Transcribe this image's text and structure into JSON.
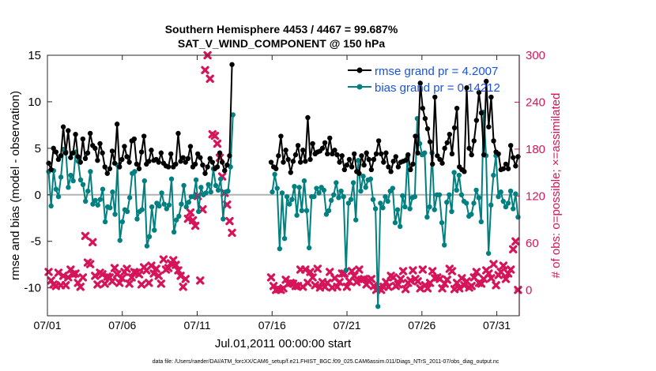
{
  "chart_data": {
    "type": "line",
    "title_line1": "Southern Hemisphere 4453 / 4467 = 99.687%",
    "title_line2": "SAT_V_WIND_COMPONENT @ 150 hPa",
    "xlabel": "Jul.01,2011 00:00:00 start",
    "ylabel": "rmse and bias (model - observation)",
    "ylabel_right": "# of obs: o=possible; ×=assimilated",
    "footnote": "data file: /Users/raeder/DAI/ATM_forcXX/CAM6_setup/f.e21.FHIST_BGC.f09_025.CAM6assim.011/Diags_NTrS_2011-07/obs_diag_output.nc",
    "xlim": [
      0,
      31.5
    ],
    "ylim": [
      -13,
      15
    ],
    "ylim_right": [
      -33,
      300
    ],
    "x_ticks": [
      0,
      5,
      10,
      15,
      20,
      25,
      30
    ],
    "x_tick_labels": [
      "07/01",
      "07/06",
      "07/11",
      "07/16",
      "07/21",
      "07/26",
      "07/31"
    ],
    "y_ticks": [
      -10,
      -5,
      0,
      5,
      10,
      15
    ],
    "y_tick_labels": [
      "-10",
      "-5",
      "0",
      "5",
      "10",
      "15"
    ],
    "y_ticks_right": [
      0,
      60,
      120,
      180,
      240,
      300
    ],
    "y_tick_labels_right": [
      "0",
      "60",
      "120",
      "180",
      "240",
      "300"
    ],
    "zero_line": 0,
    "legend_location": "top-right",
    "colors": {
      "rmse": "#000000",
      "bias": "#008080",
      "obs": "#d6145a",
      "zero": "#b3b3b3",
      "legend_text": "#1a52e0",
      "right_axis": "#d6145a"
    },
    "series": [
      {
        "name": "rmse grand pr = 4.2007",
        "marker": "circle",
        "values": [
          3.4,
          2.7,
          5.0,
          4.6,
          3.8,
          4.2,
          7.3,
          4.5,
          6.9,
          4.0,
          4.5,
          6.5,
          4.1,
          3.5,
          6.0,
          3.9,
          4.5,
          6.6,
          5.3,
          5.0,
          3.7,
          5.5,
          4.5,
          3.0,
          2.3,
          2.8,
          4.7,
          3.4,
          7.6,
          3.0,
          3.8,
          5.2,
          4.1,
          3.5,
          5.8,
          6.0,
          3.3,
          2.8,
          4.6,
          6.3,
          3.3,
          3.6,
          4.8,
          3.7,
          3.8,
          3.5,
          4.5,
          3.4,
          3.1,
          3.0,
          4.4,
          3.0,
          3.3,
          6.6,
          3.6,
          4.0,
          3.5,
          3.9,
          5.2,
          3.0,
          3.3,
          4.4,
          4.0,
          3.2,
          2.3,
          3.0,
          3.9,
          3.5,
          2.8,
          3.0,
          4.5,
          3.5,
          2.6,
          3.2,
          4.2,
          14.0,
          null,
          null,
          null,
          null,
          null,
          null,
          null,
          null,
          null,
          null,
          null,
          null,
          null,
          null,
          null,
          3.5,
          3.0,
          2.8,
          4.2,
          6.3,
          3.5,
          4.8,
          3.8,
          2.4,
          3.6,
          4.3,
          5.3,
          3.5,
          4.8,
          3.6,
          8.3,
          3.8,
          5.5,
          4.4,
          4.6,
          4.7,
          5.0,
          5.6,
          4.4,
          6.1,
          4.4,
          4.8,
          4.3,
          3.5,
          4.2,
          2.7,
          3.2,
          3.8,
          3.0,
          4.4,
          2.5,
          2.3,
          4.2,
          3.2,
          4.5,
          3.8,
          2.7,
          3.8,
          4.4,
          5.8,
          4.4,
          3.5,
          4.5,
          3.0,
          2.5,
          3.6,
          4.1,
          3.0,
          3.5,
          3.6,
          3.7,
          4.3,
          2.7,
          3.3,
          6.3,
          4.5,
          12.0,
          9.3,
          8.2,
          7.1,
          5.7,
          3.3,
          10.5,
          4.2,
          3.8,
          3.4,
          5.0,
          5.6,
          6.5,
          4.4,
          7.2,
          9.3,
          3.0,
          2.7,
          2.5,
          11.5,
          5.0,
          4.3,
          5.8,
          8.0,
          11.0,
          8.8,
          4.3,
          12.2,
          7.3,
          10.5,
          5.8,
          4.6,
          4.4,
          2.7,
          2.8,
          3.3,
          2.8,
          5.3,
          4.0,
          3.1,
          4.1
        ]
      },
      {
        "name": "bias grand pr = 0.14212",
        "marker": "circle",
        "values": [
          2.5,
          -1.2,
          2.6,
          0.6,
          -0.2,
          1.9,
          4.9,
          4.6,
          0.8,
          2.1,
          1.5,
          4.6,
          3.6,
          1.6,
          1.1,
          -0.7,
          0.4,
          2.5,
          -1.0,
          -0.6,
          -1.1,
          -0.5,
          0.6,
          -2.9,
          -1.3,
          -1.4,
          0.3,
          -2.1,
          3.2,
          -4.9,
          -2.9,
          -1.6,
          -1.8,
          -0.3,
          2.3,
          2.5,
          -2.6,
          -1.8,
          -1.6,
          1.5,
          -5.5,
          -4.5,
          -1.3,
          -3.8,
          -0.9,
          -1.2,
          0.2,
          -1.0,
          -1.5,
          -1.1,
          1.7,
          -4.0,
          -2.7,
          -2.3,
          -1.0,
          1.0,
          -1.3,
          -0.8,
          -0.2,
          -0.2,
          1.6,
          -1.8,
          0.8,
          0.0,
          0.2,
          1.1,
          0.3,
          2.8,
          1.0,
          0.5,
          1.7,
          -2.6,
          0.3,
          0.4,
          3.0,
          8.6,
          null,
          null,
          null,
          null,
          null,
          null,
          null,
          null,
          null,
          null,
          null,
          null,
          null,
          null,
          null,
          0.3,
          2.2,
          0.7,
          -5.8,
          0.2,
          -4.7,
          -0.2,
          -1.0,
          -0.5,
          0.9,
          -2.2,
          0.8,
          -1.7,
          1.5,
          -1.7,
          -5.7,
          -0.2,
          -0.2,
          0.7,
          0.2,
          0.8,
          0.5,
          -2.1,
          -1.7,
          -0.6,
          0.0,
          1.3,
          -0.3,
          0.4,
          -0.2,
          -8.1,
          -0.9,
          -0.5,
          1.3,
          -2.7,
          3.7,
          0.4,
          2.0,
          0.8,
          1.6,
          1.7,
          -0.5,
          -1.5,
          -12.0,
          -0.9,
          -1.4,
          -0.2,
          -0.7,
          0.4,
          0.7,
          -3.0,
          -1.6,
          -3.4,
          -0.1,
          -1.3,
          4.0,
          -1.5,
          -0.3,
          -0.2,
          8.2,
          5.5,
          4.3,
          4.5,
          -2.4,
          -1.3,
          4.5,
          -1.6,
          0.0,
          0.0,
          -3.0,
          -5.4,
          -0.8,
          0.0,
          -1.8,
          2.4,
          0.5,
          2.1,
          0.0,
          -0.7,
          -0.9,
          -2.3,
          -2.1,
          -0.9,
          0.5,
          -0.3,
          -2.9,
          8.9,
          4.2,
          -6.3,
          -1.1,
          2.1,
          4.2,
          -0.2,
          0.3,
          -0.7,
          -1.3,
          -0.9,
          0.4,
          -1.5,
          0.1,
          -2.4
        ]
      },
      {
        "name": "# of obs",
        "marker": "x",
        "axis": "right",
        "values": [
          23,
          12,
          7,
          5,
          22,
          6,
          18,
          6,
          16,
          26,
          20,
          21,
          9,
          4,
          16,
          69,
          35,
          33,
          61,
          18,
          7,
          22,
          20,
          8,
          17,
          16,
          11,
          28,
          20,
          9,
          15,
          23,
          27,
          8,
          16,
          23,
          22,
          20,
          7,
          29,
          25,
          9,
          31,
          21,
          27,
          18,
          8,
          39,
          26,
          28,
          34,
          38,
          32,
          25,
          18,
          4,
          14,
          91,
          99,
          89,
          82,
          120,
          12,
          103,
          281,
          300,
          270,
          199,
          197,
          187,
          169,
          145,
          124,
          109,
          88,
          73,
          null,
          null,
          null,
          null,
          null,
          null,
          null,
          null,
          null,
          null,
          null,
          null,
          null,
          null,
          null,
          16,
          5,
          0,
          1,
          0,
          2,
          13,
          8,
          9,
          8,
          5,
          5,
          26,
          4,
          26,
          9,
          23,
          16,
          6,
          27,
          3,
          10,
          4,
          9,
          23,
          3,
          15,
          4,
          10,
          21,
          21,
          4,
          11,
          24,
          18,
          10,
          26,
          13,
          14,
          7,
          12,
          14,
          5,
          0,
          2,
          0,
          4,
          10,
          4,
          18,
          16,
          5,
          7,
          14,
          24,
          1,
          9,
          12,
          25,
          14,
          11,
          2,
          26,
          6,
          2,
          9,
          24,
          15,
          16,
          14,
          2,
          8,
          13,
          27,
          24,
          1,
          9,
          2,
          15,
          6,
          11,
          3,
          5,
          16,
          23,
          9,
          8,
          14,
          25,
          21,
          15,
          33,
          6,
          19,
          23,
          31,
          14,
          21,
          26,
          52,
          62,
          0
        ]
      }
    ]
  }
}
